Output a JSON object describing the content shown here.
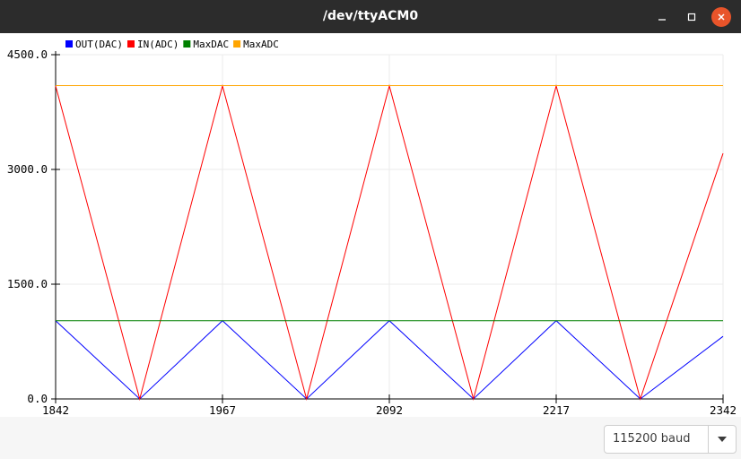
{
  "window": {
    "title": "/dev/ttyACM0",
    "controls": {
      "minimize": "minimize-icon",
      "maximize": "maximize-icon",
      "close": "close-icon"
    }
  },
  "chart_data": {
    "type": "line",
    "xlim": [
      1842,
      2342
    ],
    "ylim": [
      0,
      4500
    ],
    "x_ticks": [
      "1842",
      "1967",
      "2092",
      "2217",
      "2342"
    ],
    "y_ticks": [
      "0.0",
      "1500.0",
      "3000.0",
      "4500.0"
    ],
    "grid": true,
    "legend_position": "top-left",
    "series": [
      {
        "name": "OUT(DAC)",
        "color": "#0000ff",
        "points": [
          [
            1842,
            1023
          ],
          [
            1905,
            0
          ],
          [
            1967,
            1023
          ],
          [
            2030,
            0
          ],
          [
            2092,
            1023
          ],
          [
            2155,
            0
          ],
          [
            2217,
            1023
          ],
          [
            2280,
            0
          ],
          [
            2342,
            818
          ]
        ]
      },
      {
        "name": "IN(ADC)",
        "color": "#ff0000",
        "points": [
          [
            1842,
            4092
          ],
          [
            1905,
            0
          ],
          [
            1967,
            4092
          ],
          [
            2030,
            0
          ],
          [
            2092,
            4092
          ],
          [
            2155,
            0
          ],
          [
            2217,
            4092
          ],
          [
            2280,
            0
          ],
          [
            2342,
            3210
          ]
        ]
      },
      {
        "name": "MaxDAC",
        "color": "#008000",
        "points": [
          [
            1842,
            1023
          ],
          [
            2342,
            1023
          ]
        ]
      },
      {
        "name": "MaxADC",
        "color": "#ffa500",
        "points": [
          [
            1842,
            4095
          ],
          [
            2342,
            4095
          ]
        ]
      }
    ]
  },
  "footer": {
    "baud_select": {
      "value": "115200 baud",
      "icon": "dropdown-arrow-icon"
    }
  }
}
